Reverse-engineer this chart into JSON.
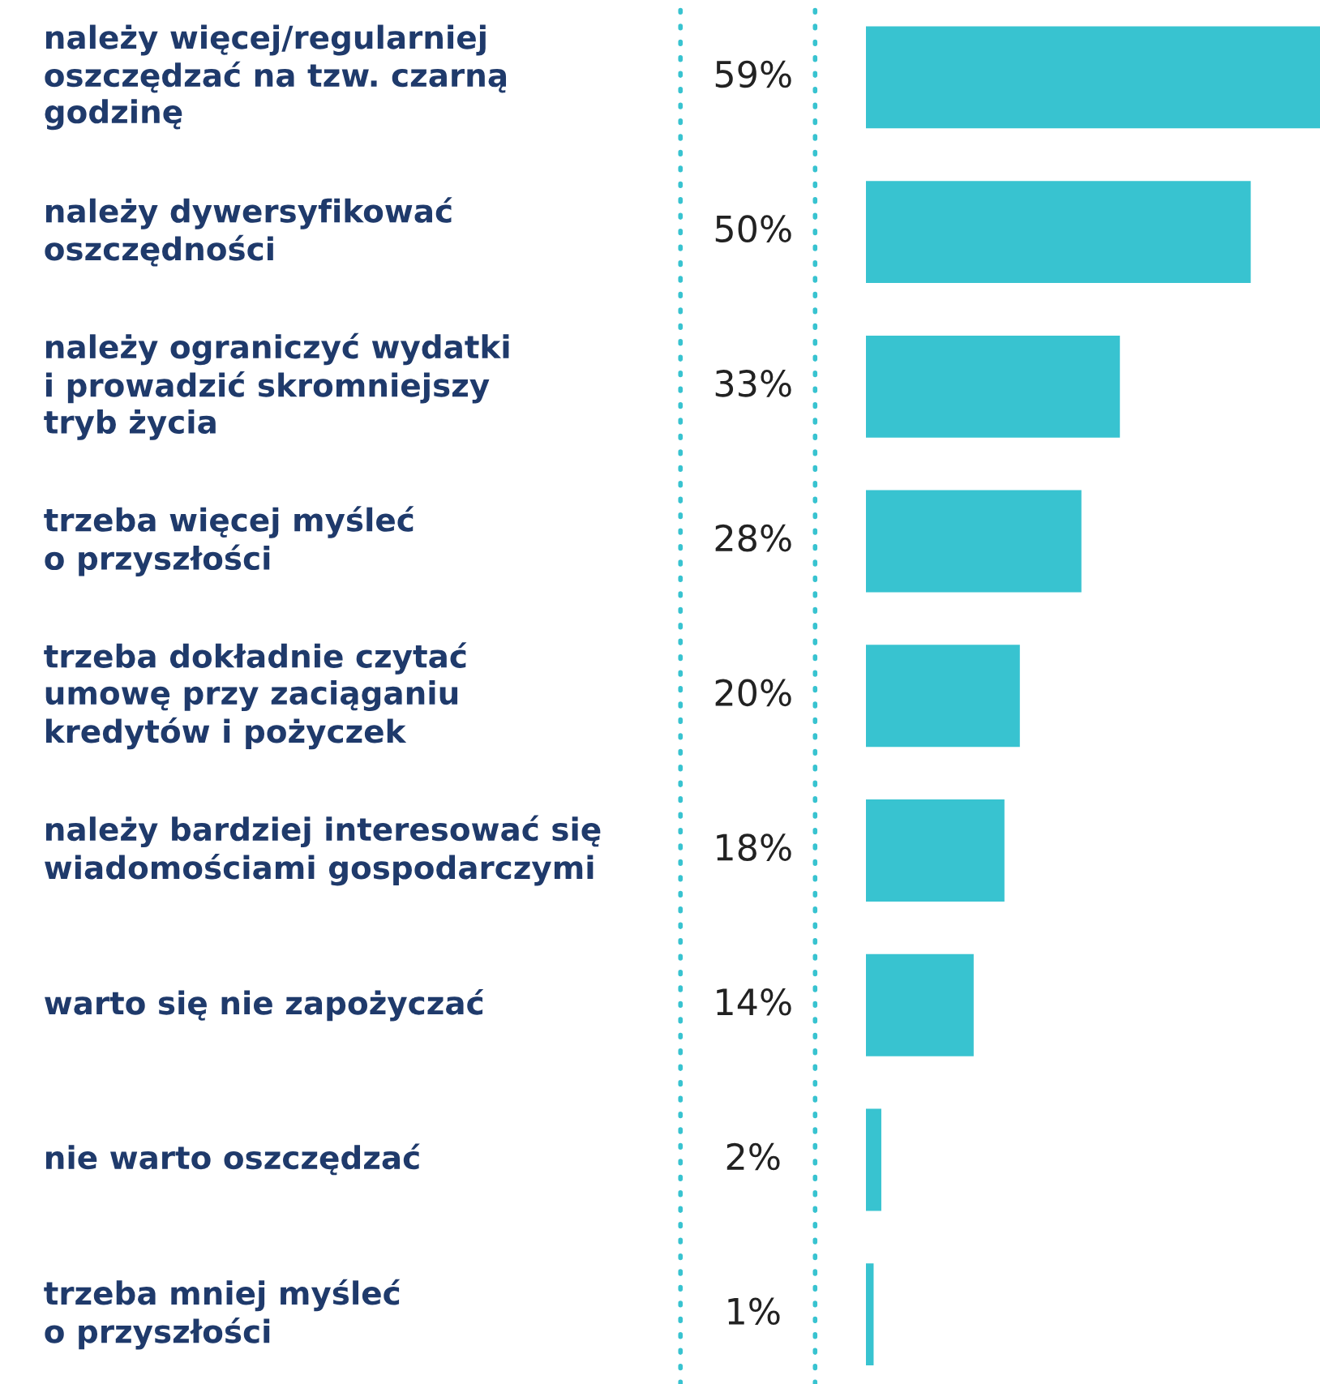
{
  "chart_data": {
    "type": "bar",
    "orientation": "horizontal",
    "categories": [
      "należy więcej/regularniej\noszczędzać na tzw. czarną\ngodzinę",
      "należy dywersyfikować\noszczędności",
      "należy ograniczyć wydatki\ni prowadzić skromniejszy\ntryb życia",
      "trzeba więcej myśleć\no przyszłości",
      "trzeba dokładnie czytać\numowę przy zaciąganiu\nkredytów i pożyczek",
      "należy bardziej interesować się\nwiadomościami gospodarczymi",
      "warto się nie zapożyczać",
      "nie warto oszczędzać",
      "trzeba mniej myśleć\no przyszłości"
    ],
    "values": [
      59,
      50,
      33,
      28,
      20,
      18,
      14,
      2,
      1
    ],
    "value_labels": [
      "59%",
      "50%",
      "33%",
      "28%",
      "20%",
      "18%",
      "14%",
      "2%",
      "1%"
    ],
    "color": "#38c3d0"
  }
}
